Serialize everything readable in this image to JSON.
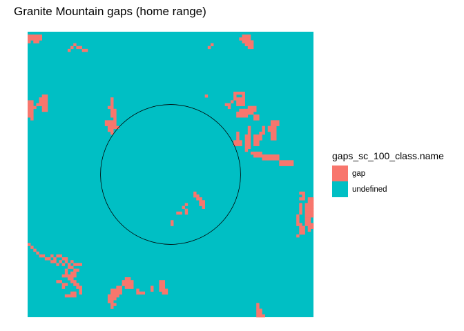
{
  "chart_data": {
    "type": "heatmap",
    "title": "Granite Mountain gaps (home range)",
    "xlabel": "",
    "ylabel": "",
    "grid": false,
    "legend": {
      "title": "gaps_sc_100_class.name",
      "placement": "right",
      "entries": [
        {
          "label": "gap",
          "color": "#F8766D"
        },
        {
          "label": "undefined",
          "color": "#00BFC4"
        }
      ]
    },
    "raster_size": [
      100,
      100
    ],
    "cell_values": [
      "gap",
      "undefined"
    ],
    "gap_cells": [
      [
        0,
        1
      ],
      [
        1,
        1
      ],
      [
        2,
        1
      ],
      [
        3,
        1
      ],
      [
        4,
        1
      ],
      [
        0,
        2
      ],
      [
        1,
        2
      ],
      [
        2,
        2
      ],
      [
        3,
        2
      ],
      [
        4,
        2
      ],
      [
        0,
        3
      ],
      [
        2,
        3
      ],
      [
        3,
        3
      ],
      [
        15,
        5
      ],
      [
        16,
        4
      ],
      [
        17,
        5
      ],
      [
        18,
        5
      ],
      [
        19,
        6
      ],
      [
        20,
        6
      ],
      [
        14,
        6
      ],
      [
        75,
        1
      ],
      [
        76,
        1
      ],
      [
        77,
        1
      ],
      [
        74,
        2
      ],
      [
        75,
        2
      ],
      [
        76,
        2
      ],
      [
        77,
        2
      ],
      [
        75,
        3
      ],
      [
        76,
        3
      ],
      [
        77,
        3
      ],
      [
        78,
        3
      ],
      [
        76,
        4
      ],
      [
        77,
        4
      ],
      [
        78,
        4
      ],
      [
        77,
        5
      ],
      [
        78,
        5
      ],
      [
        63,
        5
      ],
      [
        64,
        4
      ],
      [
        5,
        22
      ],
      [
        6,
        22
      ],
      [
        4,
        23
      ],
      [
        5,
        23
      ],
      [
        6,
        23
      ],
      [
        4,
        24
      ],
      [
        5,
        24
      ],
      [
        6,
        24
      ],
      [
        3,
        25
      ],
      [
        4,
        25
      ],
      [
        5,
        25
      ],
      [
        6,
        25
      ],
      [
        2,
        26
      ],
      [
        5,
        26
      ],
      [
        6,
        26
      ],
      [
        5,
        27
      ],
      [
        6,
        27
      ],
      [
        0,
        24
      ],
      [
        1,
        24
      ],
      [
        0,
        25
      ],
      [
        1,
        25
      ],
      [
        0,
        26
      ],
      [
        1,
        26
      ],
      [
        0,
        27
      ],
      [
        1,
        27
      ],
      [
        0,
        28
      ],
      [
        1,
        28
      ],
      [
        0,
        29
      ],
      [
        1,
        29
      ],
      [
        1,
        30
      ],
      [
        29,
        23
      ],
      [
        29,
        24
      ],
      [
        29,
        25
      ],
      [
        28,
        26
      ],
      [
        29,
        26
      ],
      [
        29,
        27
      ],
      [
        30,
        27
      ],
      [
        29,
        28
      ],
      [
        30,
        28
      ],
      [
        29,
        29
      ],
      [
        30,
        29
      ],
      [
        30,
        30
      ],
      [
        27,
        31
      ],
      [
        28,
        31
      ],
      [
        29,
        31
      ],
      [
        30,
        31
      ],
      [
        27,
        32
      ],
      [
        28,
        32
      ],
      [
        29,
        32
      ],
      [
        30,
        32
      ],
      [
        28,
        33
      ],
      [
        29,
        33
      ],
      [
        30,
        33
      ],
      [
        31,
        33
      ],
      [
        28,
        34
      ],
      [
        29,
        34
      ],
      [
        29,
        35
      ],
      [
        62,
        22
      ],
      [
        72,
        21
      ],
      [
        73,
        21
      ],
      [
        74,
        21
      ],
      [
        75,
        21
      ],
      [
        72,
        22
      ],
      [
        75,
        22
      ],
      [
        72,
        23
      ],
      [
        73,
        23
      ],
      [
        74,
        23
      ],
      [
        75,
        23
      ],
      [
        73,
        24
      ],
      [
        74,
        24
      ],
      [
        75,
        24
      ],
      [
        73,
        25
      ],
      [
        74,
        25
      ],
      [
        75,
        25
      ],
      [
        71,
        24
      ],
      [
        70,
        25
      ],
      [
        70,
        26
      ],
      [
        69,
        25
      ],
      [
        77,
        26
      ],
      [
        78,
        26
      ],
      [
        79,
        26
      ],
      [
        74,
        27
      ],
      [
        75,
        27
      ],
      [
        76,
        27
      ],
      [
        77,
        27
      ],
      [
        78,
        27
      ],
      [
        79,
        27
      ],
      [
        73,
        28
      ],
      [
        74,
        28
      ],
      [
        75,
        28
      ],
      [
        76,
        28
      ],
      [
        77,
        28
      ],
      [
        78,
        28
      ],
      [
        73,
        29
      ],
      [
        74,
        29
      ],
      [
        75,
        29
      ],
      [
        76,
        29
      ],
      [
        79,
        29
      ],
      [
        80,
        29
      ],
      [
        79,
        30
      ],
      [
        80,
        30
      ],
      [
        85,
        31
      ],
      [
        86,
        31
      ],
      [
        87,
        31
      ],
      [
        85,
        32
      ],
      [
        86,
        32
      ],
      [
        87,
        32
      ],
      [
        84,
        33
      ],
      [
        85,
        33
      ],
      [
        86,
        33
      ],
      [
        84,
        34
      ],
      [
        85,
        34
      ],
      [
        86,
        34
      ],
      [
        85,
        35
      ],
      [
        86,
        35
      ],
      [
        85,
        36
      ],
      [
        86,
        36
      ],
      [
        85,
        37
      ],
      [
        86,
        37
      ],
      [
        82,
        33
      ],
      [
        82,
        34
      ],
      [
        82,
        35
      ],
      [
        81,
        35
      ],
      [
        81,
        36
      ],
      [
        81,
        37
      ],
      [
        80,
        36
      ],
      [
        80,
        37
      ],
      [
        80,
        38
      ],
      [
        80,
        39
      ],
      [
        79,
        36
      ],
      [
        79,
        37
      ],
      [
        79,
        38
      ],
      [
        79,
        39
      ],
      [
        77,
        33
      ],
      [
        77,
        34
      ],
      [
        77,
        35
      ],
      [
        76,
        36
      ],
      [
        77,
        36
      ],
      [
        76,
        37
      ],
      [
        77,
        37
      ],
      [
        76,
        38
      ],
      [
        77,
        38
      ],
      [
        76,
        39
      ],
      [
        77,
        39
      ],
      [
        76,
        40
      ],
      [
        77,
        40
      ],
      [
        76,
        41
      ],
      [
        73,
        35
      ],
      [
        73,
        36
      ],
      [
        73,
        37
      ],
      [
        73,
        38
      ],
      [
        72,
        38
      ],
      [
        74,
        38
      ],
      [
        72,
        39
      ],
      [
        73,
        39
      ],
      [
        74,
        39
      ],
      [
        78,
        42
      ],
      [
        79,
        42
      ],
      [
        80,
        42
      ],
      [
        81,
        42
      ],
      [
        79,
        43
      ],
      [
        80,
        43
      ],
      [
        81,
        43
      ],
      [
        82,
        43
      ],
      [
        83,
        43
      ],
      [
        84,
        43
      ],
      [
        85,
        43
      ],
      [
        86,
        43
      ],
      [
        87,
        43
      ],
      [
        82,
        44
      ],
      [
        83,
        44
      ],
      [
        84,
        44
      ],
      [
        85,
        44
      ],
      [
        86,
        44
      ],
      [
        87,
        44
      ],
      [
        88,
        45
      ],
      [
        89,
        45
      ],
      [
        90,
        45
      ],
      [
        91,
        45
      ],
      [
        92,
        45
      ],
      [
        88,
        46
      ],
      [
        89,
        46
      ],
      [
        90,
        46
      ],
      [
        91,
        46
      ],
      [
        92,
        46
      ],
      [
        84,
        44
      ],
      [
        58,
        56
      ],
      [
        58,
        57
      ],
      [
        59,
        57
      ],
      [
        59,
        58
      ],
      [
        60,
        58
      ],
      [
        60,
        59
      ],
      [
        61,
        59
      ],
      [
        61,
        60
      ],
      [
        61,
        61
      ],
      [
        60,
        60
      ],
      [
        55,
        60
      ],
      [
        55,
        62
      ],
      [
        55,
        63
      ],
      [
        54,
        61
      ],
      [
        52,
        63
      ],
      [
        53,
        63
      ],
      [
        50,
        66
      ],
      [
        50,
        67
      ],
      [
        95,
        56
      ],
      [
        96,
        56
      ],
      [
        96,
        57
      ],
      [
        96,
        58
      ],
      [
        95,
        58
      ],
      [
        98,
        58
      ],
      [
        99,
        58
      ],
      [
        98,
        59
      ],
      [
        99,
        59
      ],
      [
        97,
        60
      ],
      [
        98,
        60
      ],
      [
        99,
        60
      ],
      [
        97,
        61
      ],
      [
        98,
        61
      ],
      [
        99,
        61
      ],
      [
        97,
        62
      ],
      [
        98,
        62
      ],
      [
        99,
        62
      ],
      [
        97,
        63
      ],
      [
        98,
        63
      ],
      [
        99,
        63
      ],
      [
        97,
        64
      ],
      [
        98,
        64
      ],
      [
        99,
        64
      ],
      [
        97,
        65
      ],
      [
        98,
        65
      ],
      [
        97,
        66
      ],
      [
        98,
        66
      ],
      [
        97,
        67
      ],
      [
        98,
        67
      ],
      [
        99,
        67
      ],
      [
        98,
        68
      ],
      [
        99,
        68
      ],
      [
        98,
        69
      ],
      [
        95,
        60
      ],
      [
        95,
        61
      ],
      [
        95,
        62
      ],
      [
        95,
        63
      ],
      [
        94,
        64
      ],
      [
        94,
        65
      ],
      [
        94,
        66
      ],
      [
        94,
        67
      ],
      [
        95,
        67
      ],
      [
        95,
        68
      ],
      [
        95,
        69
      ],
      [
        96,
        69
      ],
      [
        95,
        70
      ],
      [
        96,
        70
      ],
      [
        94,
        71
      ],
      [
        96,
        68
      ],
      [
        0,
        74
      ],
      [
        1,
        75
      ],
      [
        2,
        76
      ],
      [
        3,
        77
      ],
      [
        4,
        78
      ],
      [
        5,
        78
      ],
      [
        6,
        79
      ],
      [
        7,
        79
      ],
      [
        8,
        80
      ],
      [
        9,
        80
      ],
      [
        10,
        81
      ],
      [
        11,
        80
      ],
      [
        12,
        81
      ],
      [
        13,
        80
      ],
      [
        14,
        81
      ],
      [
        15,
        80
      ],
      [
        16,
        81
      ],
      [
        17,
        81
      ],
      [
        18,
        81
      ],
      [
        10,
        78
      ],
      [
        11,
        78
      ],
      [
        12,
        79
      ],
      [
        13,
        79
      ],
      [
        9,
        79
      ],
      [
        8,
        78
      ],
      [
        14,
        82
      ],
      [
        15,
        82
      ],
      [
        16,
        83
      ],
      [
        17,
        83
      ],
      [
        15,
        84
      ],
      [
        16,
        84
      ],
      [
        14,
        85
      ],
      [
        15,
        85
      ],
      [
        16,
        85
      ],
      [
        13,
        83
      ],
      [
        13,
        84
      ],
      [
        12,
        85
      ],
      [
        13,
        85
      ],
      [
        14,
        86
      ],
      [
        15,
        86
      ],
      [
        15,
        87
      ],
      [
        16,
        87
      ],
      [
        16,
        88
      ],
      [
        17,
        88
      ],
      [
        17,
        89
      ],
      [
        18,
        89
      ],
      [
        18,
        90
      ],
      [
        18,
        91
      ],
      [
        16,
        91
      ],
      [
        15,
        91
      ],
      [
        14,
        92
      ],
      [
        15,
        92
      ],
      [
        16,
        92
      ],
      [
        13,
        92
      ],
      [
        10,
        87
      ],
      [
        11,
        87
      ],
      [
        12,
        88
      ],
      [
        13,
        88
      ],
      [
        12,
        89
      ],
      [
        34,
        86
      ],
      [
        35,
        86
      ],
      [
        33,
        87
      ],
      [
        34,
        87
      ],
      [
        35,
        87
      ],
      [
        36,
        87
      ],
      [
        33,
        88
      ],
      [
        34,
        88
      ],
      [
        35,
        88
      ],
      [
        36,
        88
      ],
      [
        34,
        89
      ],
      [
        35,
        89
      ],
      [
        36,
        89
      ],
      [
        32,
        89
      ],
      [
        31,
        89
      ],
      [
        31,
        90
      ],
      [
        32,
        90
      ],
      [
        31,
        91
      ],
      [
        32,
        91
      ],
      [
        29,
        90
      ],
      [
        30,
        90
      ],
      [
        29,
        91
      ],
      [
        30,
        91
      ],
      [
        29,
        92
      ],
      [
        30,
        92
      ],
      [
        30,
        93
      ],
      [
        31,
        92
      ],
      [
        29,
        93
      ],
      [
        28,
        92
      ],
      [
        28,
        93
      ],
      [
        28,
        94
      ],
      [
        29,
        94
      ],
      [
        29,
        95
      ],
      [
        30,
        95
      ],
      [
        29,
        96
      ],
      [
        38,
        90
      ],
      [
        38,
        91
      ],
      [
        46,
        87
      ],
      [
        47,
        87
      ],
      [
        46,
        88
      ],
      [
        47,
        88
      ],
      [
        46,
        89
      ],
      [
        47,
        89
      ],
      [
        46,
        90
      ],
      [
        47,
        90
      ],
      [
        48,
        90
      ],
      [
        48,
        91
      ],
      [
        47,
        91
      ],
      [
        43,
        89
      ],
      [
        43,
        90
      ],
      [
        40,
        91
      ],
      [
        39,
        91
      ],
      [
        80,
        95
      ],
      [
        80,
        96
      ],
      [
        80,
        97
      ],
      [
        81,
        97
      ],
      [
        80,
        98
      ],
      [
        81,
        98
      ],
      [
        80,
        99
      ],
      [
        81,
        99
      ],
      [
        82,
        99
      ]
    ],
    "circle": {
      "center": [
        50,
        50
      ],
      "radius": 24.5,
      "units": "raster cells",
      "stroke": "#000000"
    }
  }
}
